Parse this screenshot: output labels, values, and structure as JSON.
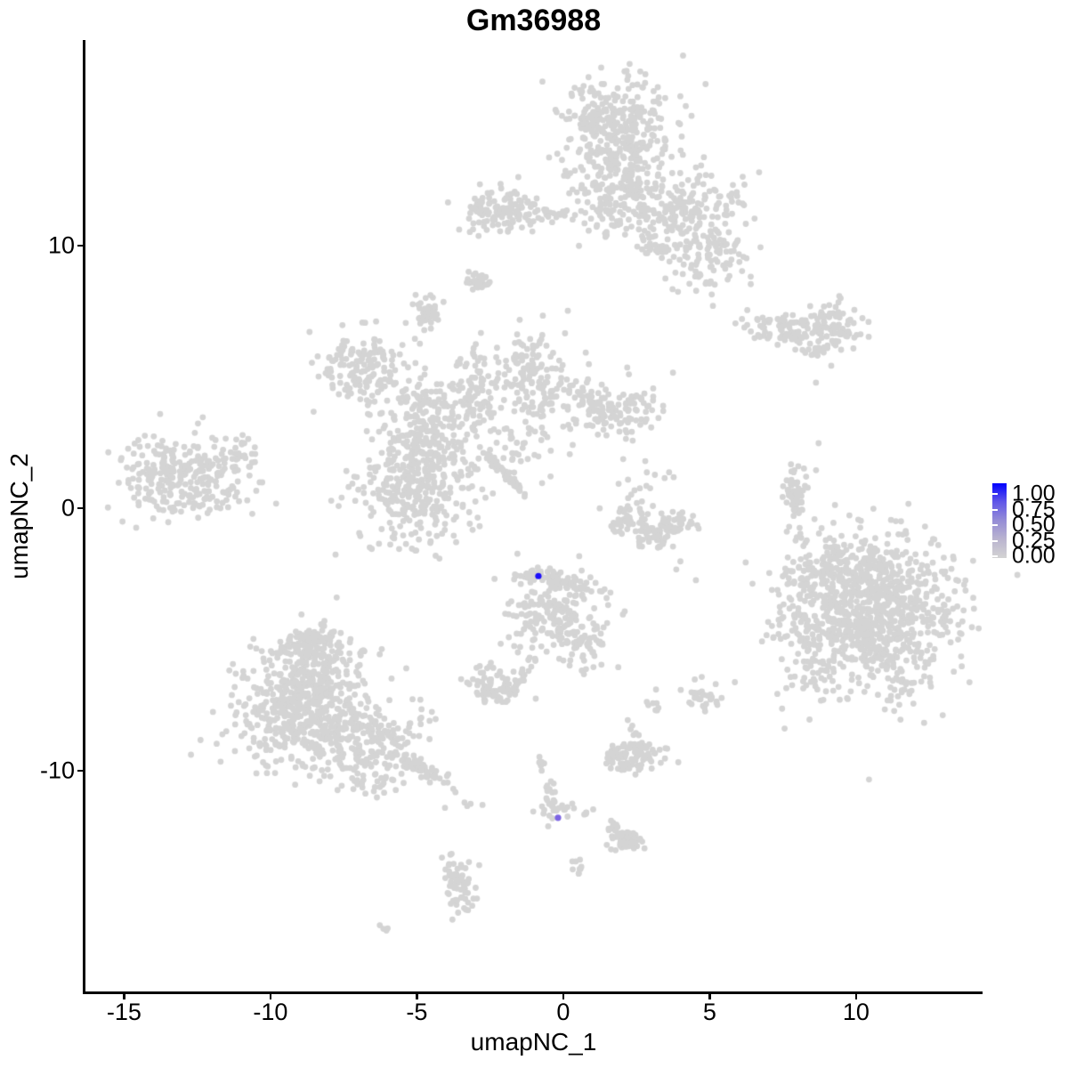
{
  "title": "Gm36988",
  "axes": {
    "x": {
      "label": "umapNC_1",
      "ticks": [
        "-15",
        "-10",
        "-5",
        "0",
        "5",
        "10"
      ],
      "tick_values": [
        -15,
        -10,
        -5,
        0,
        5,
        10
      ],
      "range": [
        -16.35,
        14.32
      ]
    },
    "y": {
      "label": "umapNC_2",
      "ticks": [
        "10",
        "0",
        "-10"
      ],
      "tick_values": [
        10,
        0,
        -10
      ],
      "range": [
        -18.45,
        17.83
      ]
    }
  },
  "legend": {
    "labels": [
      "1.00",
      "0.75",
      "0.50",
      "0.25",
      "0.00"
    ],
    "values": [
      1.0,
      0.75,
      0.5,
      0.25,
      0.0
    ],
    "gradient": [
      "#0000ff",
      "#6157e8",
      "#958dd6",
      "#bab4cf",
      "#d3d3d3"
    ]
  },
  "style": {
    "point_color": "#d4d4d4",
    "highlight_high_color": "#1b0dfa",
    "highlight_mid_color": "#7b63e3",
    "axis_color": "#000000",
    "background": "#ffffff"
  },
  "chart_data": {
    "type": "scatter",
    "title": "Gm36988",
    "xlabel": "umapNC_1",
    "ylabel": "umapNC_2",
    "xlim": [
      -16.35,
      14.32
    ],
    "ylim": [
      -18.45,
      17.83
    ],
    "grid": false,
    "legend_position": "right",
    "colorscale": {
      "low": "#d3d3d3",
      "high": "#0000ff",
      "domain": [
        0,
        1
      ]
    },
    "point_radius_px": 3.4,
    "clusters": [
      {
        "cx": 1.89,
        "cy": 14.27,
        "sx": 0.91,
        "sy": 1.02,
        "n": 380
      },
      {
        "cx": 1.74,
        "cy": 11.73,
        "sx": 0.76,
        "sy": 0.85,
        "n": 150
      },
      {
        "cx": 4.17,
        "cy": 11.39,
        "sx": 1.06,
        "sy": 0.68,
        "n": 180
      },
      {
        "cx": 4.77,
        "cy": 9.52,
        "sx": 0.76,
        "sy": 0.68,
        "n": 100
      },
      {
        "cx": 3.16,
        "cy": 10.03,
        "sx": 0.24,
        "sy": 0.2,
        "n": 18
      },
      {
        "cx": -2.06,
        "cy": 11.28,
        "sx": 0.76,
        "sy": 0.44,
        "n": 120
      },
      {
        "cx": -0.33,
        "cy": 11.18,
        "sx": 0.55,
        "sy": 0.15,
        "n": 22
      },
      {
        "cx": 7.51,
        "cy": 6.81,
        "sx": 0.76,
        "sy": 0.3,
        "n": 80
      },
      {
        "cx": 9.18,
        "cy": 6.98,
        "sx": 0.6,
        "sy": 0.47,
        "n": 90
      },
      {
        "cx": 8.63,
        "cy": 5.93,
        "sx": 0.27,
        "sy": 0.17,
        "n": 12
      },
      {
        "cx": -6.78,
        "cy": 5.45,
        "sx": 0.85,
        "sy": 0.68,
        "n": 150
      },
      {
        "cx": -4.8,
        "cy": 4.1,
        "sx": 0.85,
        "sy": 0.5,
        "n": 90
      },
      {
        "cx": -4.65,
        "cy": 2.4,
        "sx": 0.9,
        "sy": 0.85,
        "n": 200
      },
      {
        "cx": -5.19,
        "cy": 0.37,
        "sx": 1.1,
        "sy": 0.95,
        "n": 260
      },
      {
        "cx": -3.07,
        "cy": 4.61,
        "sx": 0.3,
        "sy": 0.85,
        "n": 70
      },
      {
        "cx": -1.0,
        "cy": 5.12,
        "sx": 0.8,
        "sy": 0.8,
        "n": 160
      },
      {
        "cx": 1.74,
        "cy": 3.83,
        "sx": 0.9,
        "sy": 0.55,
        "n": 140
      },
      {
        "cx": -1.46,
        "cy": 2.57,
        "sx": 0.9,
        "sy": 0.7,
        "n": 50
      },
      {
        "cx": -13.01,
        "cy": 1.22,
        "sx": 1.1,
        "sy": 0.78,
        "n": 280
      },
      {
        "cx": -10.97,
        "cy": 2.0,
        "sx": 0.4,
        "sy": 0.33,
        "n": 25
      },
      {
        "cx": -2.88,
        "cy": 8.64,
        "sx": 0.2,
        "sy": 0.2,
        "n": 30
      },
      {
        "cx": -4.65,
        "cy": 7.42,
        "sx": 0.24,
        "sy": 0.33,
        "n": 40
      },
      {
        "cx": 2.19,
        "cy": -0.48,
        "sx": 0.4,
        "sy": 0.3,
        "n": 40
      },
      {
        "cx": 3.1,
        "cy": -0.99,
        "sx": 0.45,
        "sy": 0.3,
        "n": 50
      },
      {
        "cx": 3.92,
        "cy": -0.58,
        "sx": 0.36,
        "sy": 0.3,
        "n": 35
      },
      {
        "cx": 2.89,
        "cy": 0.88,
        "sx": 0.45,
        "sy": 0.4,
        "n": 18
      },
      {
        "cx": 7.91,
        "cy": 0.37,
        "sx": 0.18,
        "sy": 0.7,
        "n": 65
      },
      {
        "cx": 10.7,
        "cy": -4.04,
        "sx": 1.35,
        "sy": 1.5,
        "n": 850
      },
      {
        "cx": 8.36,
        "cy": -4.38,
        "sx": 0.6,
        "sy": 1.5,
        "n": 140
      },
      {
        "cx": 9.49,
        "cy": -2.17,
        "sx": 1.0,
        "sy": 0.5,
        "n": 120
      },
      {
        "cx": -0.24,
        "cy": -4.11,
        "sx": 0.85,
        "sy": 0.8,
        "n": 210
      },
      {
        "cx": 0.82,
        "cy": -5.33,
        "sx": 0.3,
        "sy": 0.45,
        "n": 30
      },
      {
        "cx": -2.43,
        "cy": -6.78,
        "sx": 0.4,
        "sy": 0.35,
        "n": 70
      },
      {
        "cx": -0.33,
        "cy": -11.32,
        "sx": 0.25,
        "sy": 0.4,
        "n": 25
      },
      {
        "cx": 0.67,
        "cy": -11.66,
        "sx": 0.25,
        "sy": 0.12,
        "n": 6
      },
      {
        "cx": 2.34,
        "cy": -9.36,
        "sx": 0.55,
        "sy": 0.3,
        "n": 90
      },
      {
        "cx": 2.4,
        "cy": -8.44,
        "sx": 0.12,
        "sy": 0.25,
        "n": 8
      },
      {
        "cx": 3.16,
        "cy": -7.53,
        "sx": 0.12,
        "sy": 0.25,
        "n": 8
      },
      {
        "cx": 2.19,
        "cy": -12.68,
        "sx": 0.3,
        "sy": 0.2,
        "n": 25
      },
      {
        "cx": 4.77,
        "cy": -7.26,
        "sx": 0.3,
        "sy": 0.3,
        "n": 30
      },
      {
        "cx": -3.49,
        "cy": -14.38,
        "sx": 0.28,
        "sy": 0.6,
        "n": 55
      },
      {
        "cx": -6.08,
        "cy": -16.04,
        "sx": 0.12,
        "sy": 0.1,
        "n": 4
      },
      {
        "cx": 0.52,
        "cy": -13.87,
        "sx": 0.1,
        "sy": 0.22,
        "n": 8
      },
      {
        "cx": -8.6,
        "cy": -6.41,
        "sx": 1.0,
        "sy": 0.85,
        "n": 280
      },
      {
        "cx": -9.21,
        "cy": -8.11,
        "sx": 1.2,
        "sy": 0.8,
        "n": 280
      },
      {
        "cx": -7.08,
        "cy": -8.78,
        "sx": 1.1,
        "sy": 0.75,
        "n": 250
      },
      {
        "cx": -8.45,
        "cy": -5.22,
        "sx": 0.55,
        "sy": 0.4,
        "n": 80
      },
      {
        "cx": -6.47,
        "cy": -10.48,
        "sx": 0.5,
        "sy": 0.3,
        "n": 25
      },
      {
        "cx": -3.13,
        "cy": -11.32,
        "sx": 0.18,
        "sy": 0.12,
        "n": 4
      },
      {
        "cx": -3.89,
        "cy": -13.7,
        "sx": 0.25,
        "sy": 0.3,
        "n": 10
      }
    ],
    "strands": [
      {
        "x1": -2.67,
        "y1": 2.07,
        "x2": -1.25,
        "y2": 0.47,
        "n": 50,
        "jitter": 0.07
      },
      {
        "x1": -1.52,
        "y1": -2.51,
        "x2": 0.82,
        "y2": -3.02,
        "n": 70,
        "jitter": 0.15
      },
      {
        "x1": -1.06,
        "y1": -5.8,
        "x2": -1.98,
        "y2": -7.36,
        "n": 25,
        "jitter": 0.1
      },
      {
        "x1": -0.88,
        "y1": -9.29,
        "x2": -0.24,
        "y2": -11.66,
        "n": 16,
        "jitter": 0.1
      },
      {
        "x1": 1.58,
        "y1": -12.1,
        "x2": 2.49,
        "y2": -12.85,
        "n": 35,
        "jitter": 0.12
      },
      {
        "x1": -5.56,
        "y1": -9.63,
        "x2": -3.89,
        "y2": -10.48,
        "n": 55,
        "jitter": 0.16
      }
    ],
    "singles": [
      [
        6.23,
        -2.07
      ],
      [
        8.72,
        2.47
      ],
      [
        -0.94,
        -7.26
      ],
      [
        -4.04,
        -11.42
      ],
      [
        0.31,
        -13.46
      ],
      [
        4.53,
        -2.75
      ],
      [
        3.86,
        -2.34
      ],
      [
        2.37,
        2.57
      ],
      [
        8.63,
        4.78
      ],
      [
        2.8,
        1.79
      ],
      [
        4.0,
        -2.03
      ]
    ],
    "highlighted_points": [
      {
        "x": -0.85,
        "y": -2.59,
        "value": 1.0,
        "color": "#1b0dfa"
      },
      {
        "x": -0.18,
        "y": -11.8,
        "value": 0.55,
        "color": "#7b63e3"
      }
    ]
  }
}
